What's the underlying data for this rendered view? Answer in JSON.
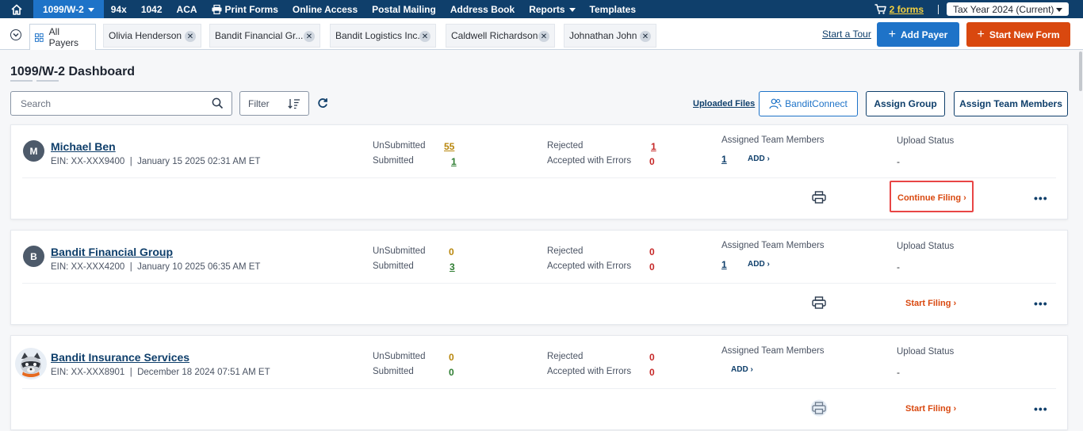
{
  "topnav": {
    "items": [
      {
        "label": "1099/W-2",
        "active": true,
        "dropdown": true
      },
      {
        "label": "94x"
      },
      {
        "label": "1042"
      },
      {
        "label": "ACA"
      },
      {
        "label": "Print Forms",
        "icon": "printer-icon"
      },
      {
        "label": "Online Access"
      },
      {
        "label": "Postal Mailing"
      },
      {
        "label": "Address Book"
      },
      {
        "label": "Reports",
        "dropdown": true
      },
      {
        "label": "Templates"
      }
    ],
    "cart_label": "2 forms",
    "tax_year": "Tax Year 2024 (Current)"
  },
  "tabs": {
    "all_payers": "All Payers",
    "items": [
      "Olivia Henderson",
      "Bandit Financial Gr...",
      "Bandit Logistics Inc.",
      "Caldwell Richardson",
      "Johnathan John"
    ],
    "start_tour": "Start a Tour",
    "add_payer": "Add Payer",
    "start_new_form": "Start New Form"
  },
  "page": {
    "title": "1099/W-2 Dashboard"
  },
  "toolbar": {
    "search_placeholder": "Search",
    "filter_label": "Filter",
    "uploaded_files": "Uploaded Files",
    "bandit_connect": "BanditConnect",
    "assign_group": "Assign Group",
    "assign_team_members": "Assign Team Members"
  },
  "labels": {
    "unsubmitted": "UnSubmitted",
    "submitted": "Submitted",
    "rejected": "Rejected",
    "accepted_errors": "Accepted with Errors",
    "assigned_team": "Assigned Team Members",
    "upload_status": "Upload Status",
    "add": "ADD",
    "more": "•••"
  },
  "payers": [
    {
      "initial": "M",
      "name": "Michael Ben",
      "ein": "EIN: XX-XXX9400",
      "date": "January 15 2025 02:31 AM ET",
      "unsubmitted": "55",
      "submitted": "1",
      "rejected": "1",
      "accepted_errors": "0",
      "team_count": "1",
      "upload_status": "-",
      "action": "Continue Filing"
    },
    {
      "initial": "B",
      "name": "Bandit Financial Group",
      "ein": "EIN: XX-XXX4200",
      "date": "January 10 2025 06:35 AM ET",
      "unsubmitted": "0",
      "submitted": "3",
      "rejected": "0",
      "accepted_errors": "0",
      "team_count": "1",
      "upload_status": "-",
      "action": "Start Filing"
    },
    {
      "initial": "",
      "name": "Bandit Insurance Services",
      "ein": "EIN: XX-XXX8901",
      "date": "December 18 2024 07:51 AM ET",
      "unsubmitted": "0",
      "submitted": "0",
      "rejected": "0",
      "accepted_errors": "0",
      "team_count": "",
      "upload_status": "-",
      "action": "Start Filing"
    }
  ],
  "colors": {
    "nav_bg": "#0f3f6b",
    "accent_blue": "#1e73c8",
    "accent_orange": "#d9480f",
    "highlight_red": "#e84545"
  }
}
